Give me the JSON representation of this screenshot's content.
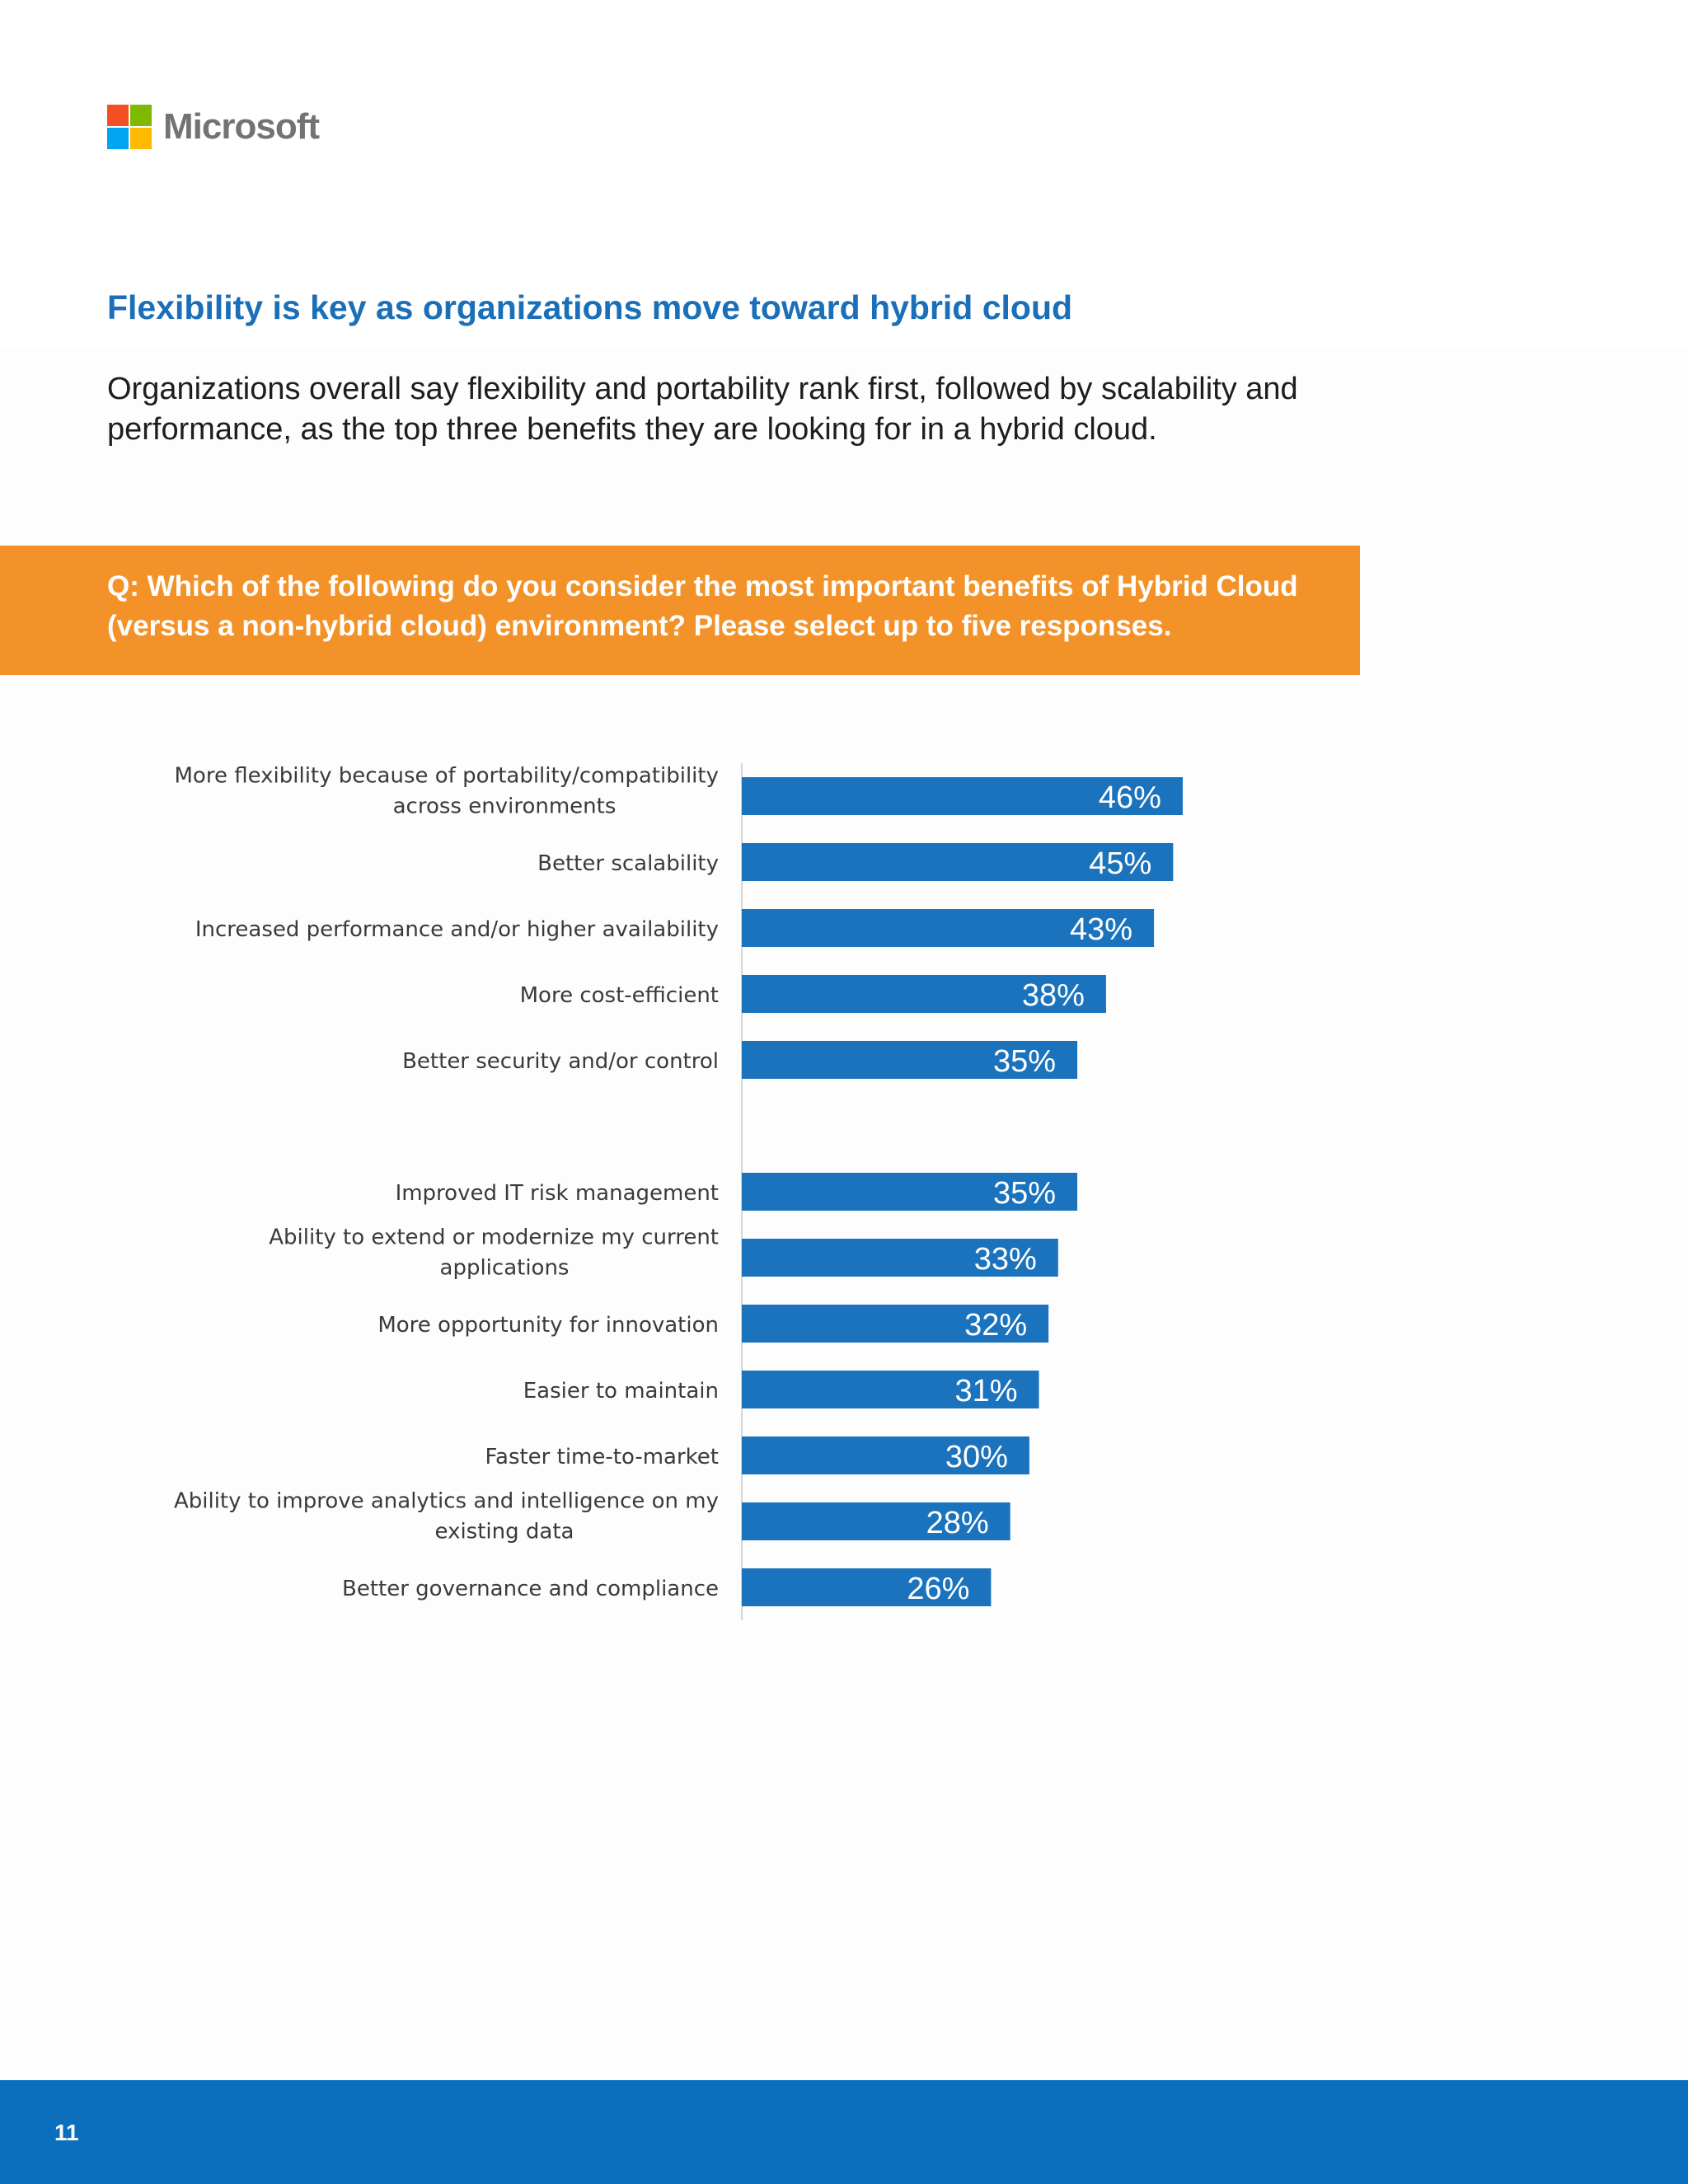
{
  "brand": {
    "name": "Microsoft",
    "logo_colors": [
      "#f25022",
      "#7fba00",
      "#00a4ef",
      "#ffb900"
    ]
  },
  "headline": "Flexibility is key as organizations move toward hybrid cloud",
  "intro": "Organizations overall say flexibility and portability rank first, followed by scalability and performance, as the top three benefits they are looking for in a hybrid cloud.",
  "question": "Q: Which of the following do you consider the most important benefits of Hybrid Cloud (versus a non-hybrid cloud) environment? Please select up to five responses.",
  "page_number": "11",
  "colors": {
    "accent_blue": "#1a6fb8",
    "bar": "#1a73bc",
    "banner": "#f39229",
    "footer": "#0b6fbd"
  },
  "chart_data": {
    "type": "bar",
    "orientation": "horizontal",
    "categories": [
      [
        "More flexibility because of portability/compatibility",
        "across environments"
      ],
      [
        "Better scalability"
      ],
      [
        "Increased performance and/or higher availability"
      ],
      [
        "More cost-efficient"
      ],
      [
        "Better security and/or control"
      ],
      [
        "Improved IT risk management"
      ],
      [
        "Ability to extend or modernize my current",
        "applications"
      ],
      [
        "More opportunity for innovation"
      ],
      [
        "Easier to maintain"
      ],
      [
        "Faster time-to-market"
      ],
      [
        "Ability to improve analytics and intelligence on my",
        "existing data"
      ],
      [
        "Better governance and compliance"
      ]
    ],
    "values": [
      46,
      45,
      43,
      38,
      35,
      35,
      33,
      32,
      31,
      30,
      28,
      26
    ],
    "value_labels": [
      "46%",
      "45%",
      "43%",
      "38%",
      "35%",
      "35%",
      "33%",
      "32%",
      "31%",
      "30%",
      "28%",
      "26%"
    ],
    "groups": [
      [
        0,
        1,
        2,
        3,
        4
      ],
      [
        5,
        6,
        7,
        8,
        9,
        10,
        11
      ]
    ],
    "unit": "%",
    "grid": false,
    "legend": "none"
  }
}
